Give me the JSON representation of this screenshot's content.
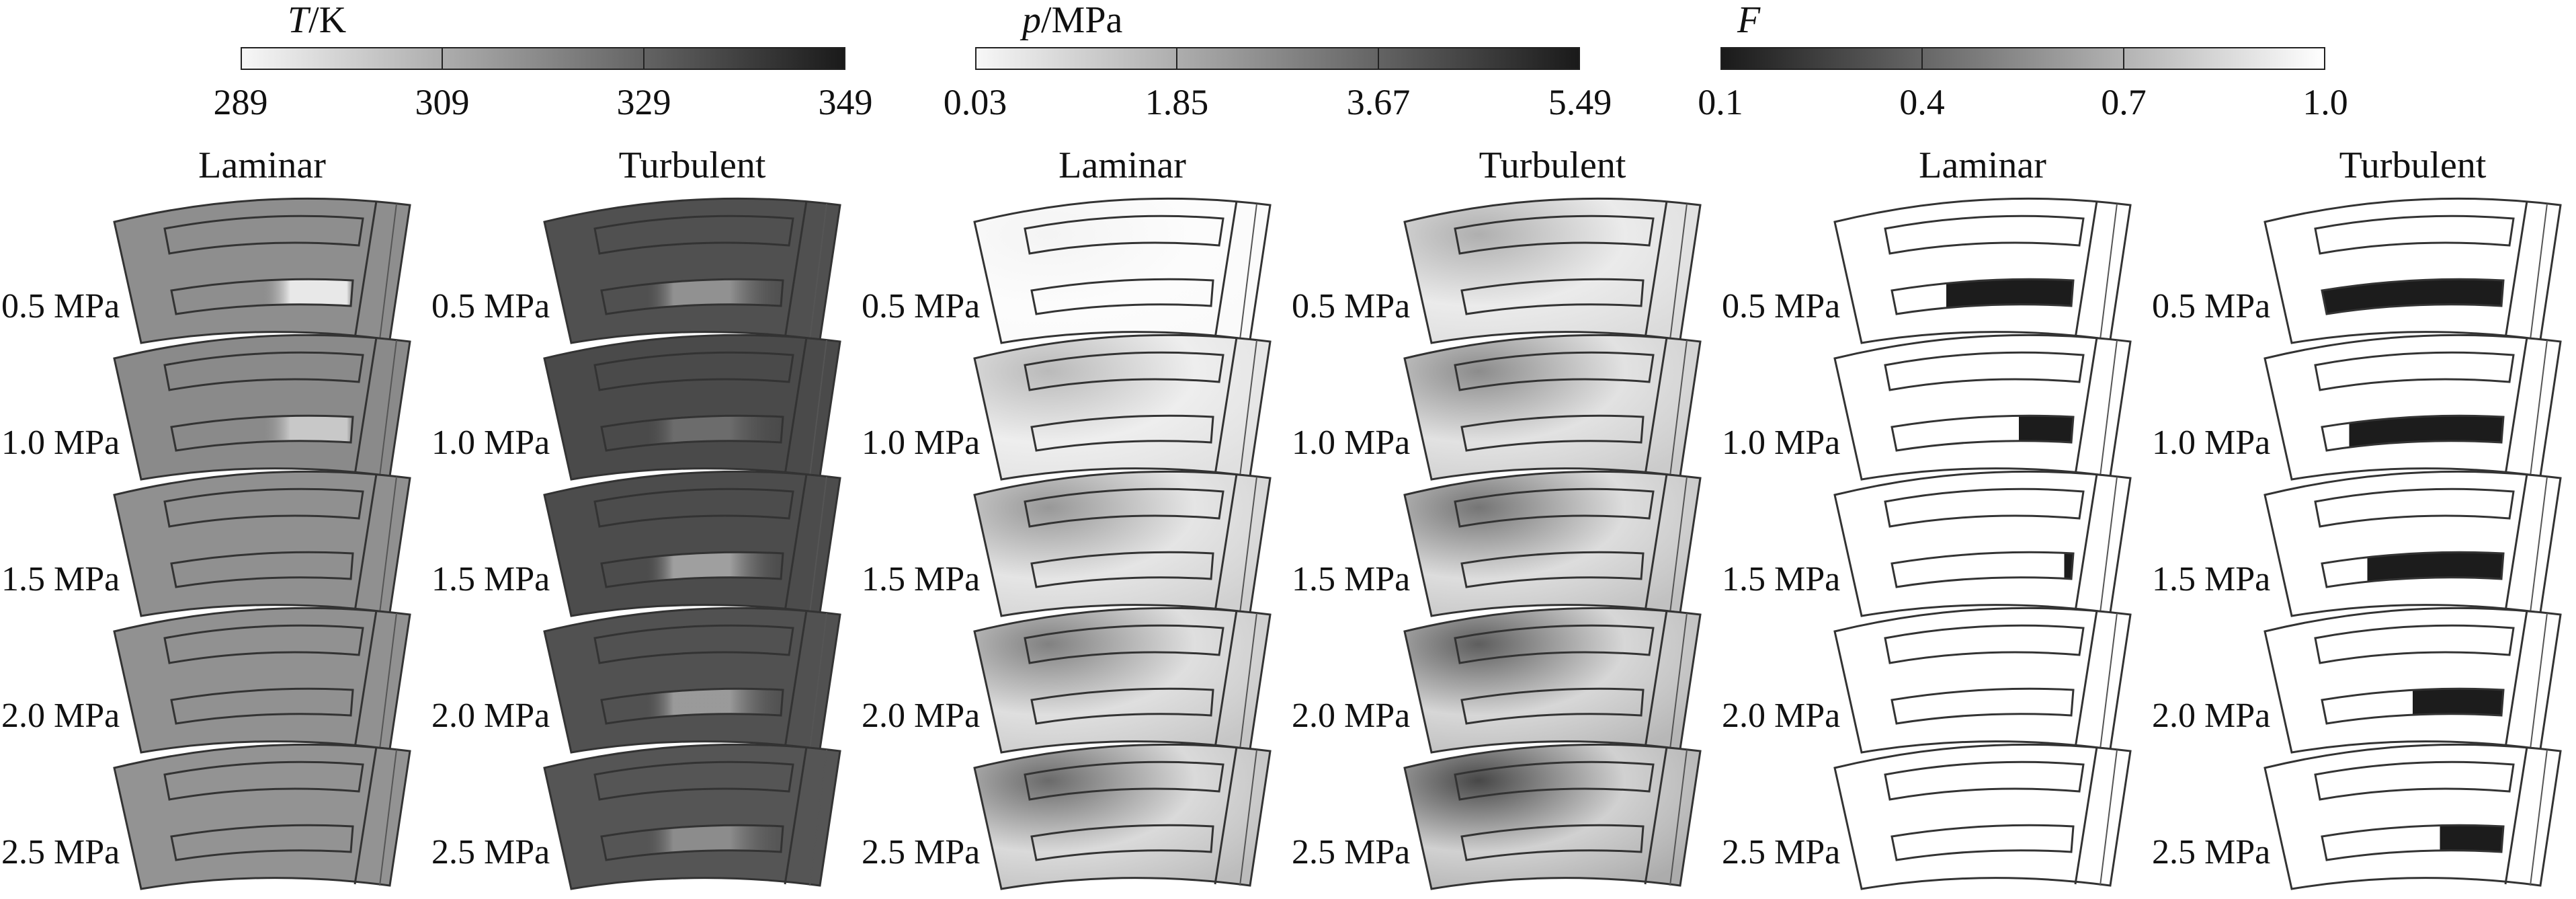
{
  "colorbars": [
    {
      "id": "T",
      "title_var": "T",
      "title_unit": "/K",
      "ticks": [
        "289",
        "309",
        "329",
        "349"
      ],
      "gradient": [
        "#f7f7f7",
        "#1a1a1a"
      ]
    },
    {
      "id": "p",
      "title_var": "p",
      "title_unit": "/MPa",
      "ticks": [
        "0.03",
        "1.85",
        "3.67",
        "5.49"
      ],
      "gradient": [
        "#f7f7f7",
        "#1a1a1a"
      ]
    },
    {
      "id": "F",
      "title_var": "F",
      "title_unit": "",
      "ticks": [
        "0.1",
        "0.4",
        "0.7",
        "1.0"
      ],
      "gradient": [
        "#1a1a1a",
        "#ffffff"
      ]
    }
  ],
  "columns": [
    "Laminar",
    "Turbulent",
    "Laminar",
    "Turbulent",
    "Laminar",
    "Turbulent"
  ],
  "rows": [
    "0.5 MPa",
    "1.0 MPa",
    "1.5 MPa",
    "2.0 MPa",
    "2.5 MPa"
  ],
  "fields": {
    "T": {
      "laminar": {
        "base": [
          "#8e8e8e",
          "#8a8a8a",
          "#909090",
          "#919191",
          "#939393"
        ],
        "hot_spot_intensity": [
          0.9,
          0.6,
          0.0,
          0.0,
          0.0
        ]
      },
      "turbulent": {
        "base": [
          "#505050",
          "#4a4a4a",
          "#4c4c4c",
          "#515151",
          "#555555"
        ],
        "hot_spot_intensity": [
          0.4,
          0.2,
          0.5,
          0.45,
          0.35
        ]
      }
    },
    "p": {
      "laminar": {
        "level": [
          0.05,
          0.3,
          0.45,
          0.55,
          0.65
        ]
      },
      "turbulent": {
        "level": [
          0.35,
          0.5,
          0.6,
          0.7,
          0.8
        ]
      }
    },
    "F": {
      "laminar": {
        "dark_extent": [
          0.7,
          0.3,
          0.05,
          0.0,
          0.0
        ]
      },
      "turbulent": {
        "dark_extent": [
          1.0,
          0.85,
          0.75,
          0.5,
          0.35
        ]
      }
    }
  }
}
